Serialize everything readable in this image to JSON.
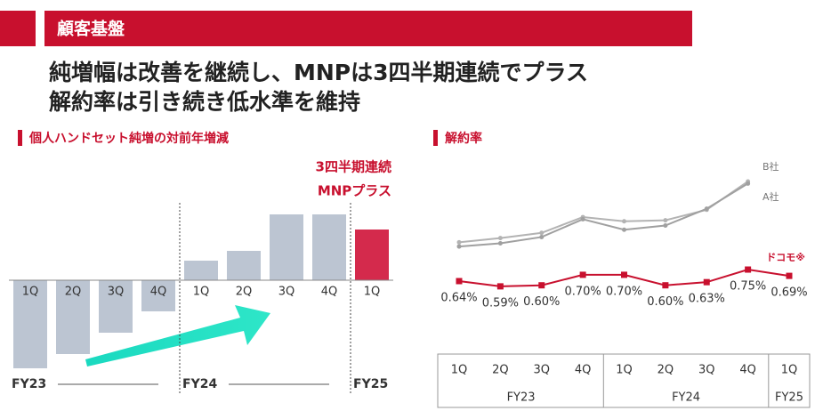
{
  "header": {
    "title": "顧客基盤",
    "headline": [
      "純増幅は改善を継続し、MNPは3四半期連続でプラス",
      "解約率は引き続き低水準を維持"
    ]
  },
  "chart_data": [
    {
      "type": "bar",
      "title": "個人ハンドセット純増の対前年増減",
      "annotation": [
        "3四半期連続",
        "MNPプラス"
      ],
      "groups": [
        {
          "label": "FY23",
          "categories": [
            "1Q",
            "2Q",
            "3Q",
            "4Q"
          ]
        },
        {
          "label": "FY24",
          "categories": [
            "1Q",
            "2Q",
            "3Q",
            "4Q"
          ]
        },
        {
          "label": "FY25",
          "categories": [
            "1Q"
          ]
        }
      ],
      "values": [
        -99,
        -83,
        -59,
        -35,
        22,
        33,
        74,
        74,
        57
      ],
      "colors": [
        "#bcc5d2",
        "#bcc5d2",
        "#bcc5d2",
        "#bcc5d2",
        "#bcc5d2",
        "#bcc5d2",
        "#bcc5d2",
        "#bcc5d2",
        "#d42a4c"
      ],
      "ylim": [
        -100,
        80
      ]
    },
    {
      "type": "line",
      "title": "解約率",
      "groups": [
        {
          "label": "FY23",
          "categories": [
            "1Q",
            "2Q",
            "3Q",
            "4Q"
          ]
        },
        {
          "label": "FY24",
          "categories": [
            "1Q",
            "2Q",
            "3Q",
            "4Q"
          ]
        },
        {
          "label": "FY25",
          "categories": [
            "1Q"
          ]
        }
      ],
      "series": [
        {
          "name": "B社",
          "color": "#b3b3b3",
          "values": [
            1.01,
            1.05,
            1.1,
            1.25,
            1.21,
            1.22,
            1.32,
            1.59,
            null
          ]
        },
        {
          "name": "A社",
          "color": "#a0a0a0",
          "values": [
            0.97,
            1.0,
            1.06,
            1.23,
            1.13,
            1.17,
            1.33,
            1.57,
            null
          ]
        },
        {
          "name": "ドコモ※",
          "color": "#c8102e",
          "values": [
            0.64,
            0.59,
            0.6,
            0.7,
            0.7,
            0.6,
            0.63,
            0.75,
            0.69
          ],
          "value_labels": [
            "0.64%",
            "0.59%",
            "0.60%",
            "0.70%",
            "0.70%",
            "0.60%",
            "0.63%",
            "0.75%",
            "0.69%"
          ]
        }
      ],
      "ylim": [
        0.5,
        1.7
      ]
    }
  ]
}
